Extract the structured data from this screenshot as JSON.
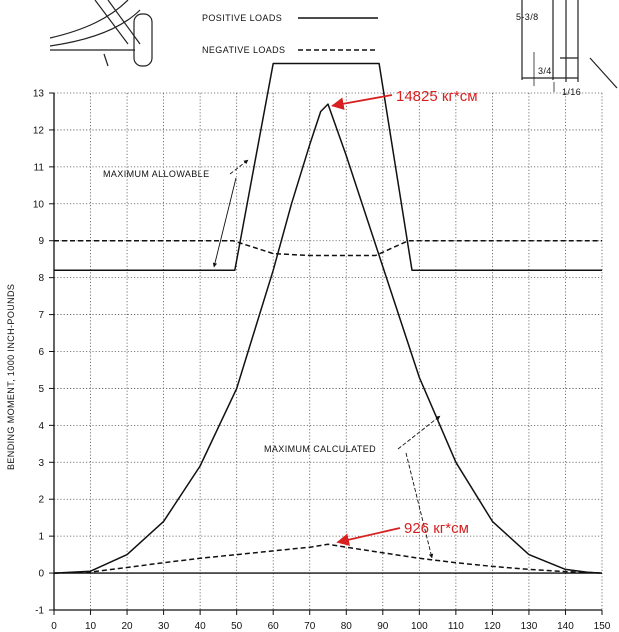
{
  "chart_data": {
    "type": "line",
    "title": "",
    "xlabel": "",
    "ylabel": "BENDING MOMENT, 1000 INCH-POUNDS",
    "xlim": [
      0,
      150
    ],
    "ylim": [
      -1,
      13
    ],
    "x_ticks": [
      0,
      10,
      20,
      30,
      40,
      50,
      60,
      70,
      80,
      90,
      100,
      110,
      120,
      130,
      140,
      150
    ],
    "y_ticks": [
      -1,
      0,
      1,
      2,
      3,
      4,
      5,
      6,
      7,
      8,
      9,
      10,
      11,
      12,
      13
    ],
    "grid": true,
    "legend": [
      {
        "name": "POSITIVE LOADS",
        "style": "solid"
      },
      {
        "name": "NEGATIVE LOADS",
        "style": "dashed"
      }
    ],
    "series": [
      {
        "name": "POSITIVE LOADS",
        "role": "allowable",
        "style": "solid",
        "x": [
          0,
          49.5,
          51,
          60,
          89,
          98,
          98.5,
          150
        ],
        "y": [
          8.2,
          8.2,
          9.0,
          13.8,
          13.8,
          8.2,
          8.2,
          8.2
        ]
      },
      {
        "name": "NEGATIVE LOADS",
        "role": "allowable",
        "style": "dashed",
        "x": [
          0,
          49,
          60,
          70,
          80,
          88,
          97,
          100,
          150
        ],
        "y": [
          9.0,
          9.0,
          8.65,
          8.6,
          8.6,
          8.6,
          9.0,
          9.0,
          9.0
        ]
      },
      {
        "name": "POSITIVE LOADS",
        "role": "calculated",
        "style": "solid",
        "x": [
          0,
          10,
          20,
          30,
          40,
          50,
          60,
          65,
          70,
          73,
          75,
          80,
          90,
          100,
          110,
          120,
          130,
          140,
          146,
          150
        ],
        "y": [
          0,
          0.05,
          0.5,
          1.4,
          2.9,
          5.0,
          8.2,
          10.0,
          11.6,
          12.5,
          12.7,
          11.3,
          8.3,
          5.3,
          3.0,
          1.4,
          0.5,
          0.1,
          0.02,
          0
        ]
      },
      {
        "name": "NEGATIVE LOADS",
        "role": "calculated",
        "style": "dashed",
        "x": [
          0,
          10,
          20,
          30,
          40,
          50,
          60,
          70,
          75,
          80,
          90,
          100,
          110,
          120,
          130,
          140,
          150
        ],
        "y": [
          0,
          0.03,
          0.15,
          0.28,
          0.4,
          0.5,
          0.6,
          0.7,
          0.78,
          0.7,
          0.55,
          0.4,
          0.28,
          0.18,
          0.1,
          0.04,
          0
        ]
      }
    ],
    "annotations": [
      {
        "text": "MAXIMUM ALLOWABLE",
        "color": "#111111"
      },
      {
        "text": "MAXIMUM CALCULATED",
        "color": "#111111"
      },
      {
        "text": "14825 кг*см",
        "color": "#d82020",
        "points_to": {
          "x": 74,
          "y": 12.6
        }
      },
      {
        "text": "926 кг*см",
        "color": "#d82020",
        "points_to": {
          "x": 76,
          "y": 0.78
        }
      }
    ],
    "inset_labels": [
      "5-3/8",
      "3/4",
      "1/16"
    ]
  }
}
